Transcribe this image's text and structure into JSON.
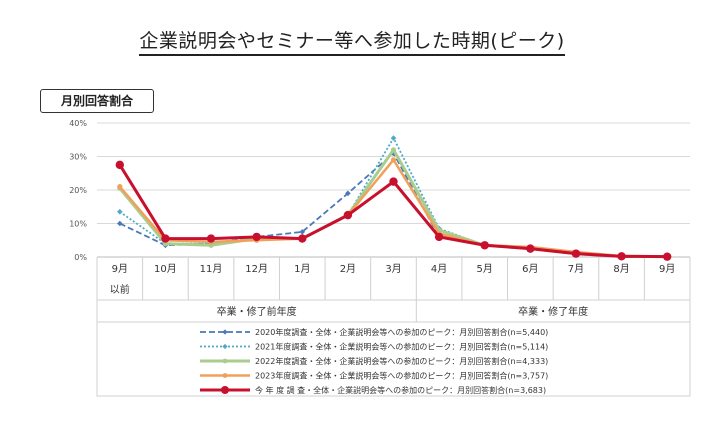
{
  "page": {
    "title": "企業説明会やセミナー等へ参加した時期(ピーク)",
    "badge": "月別回答割合"
  },
  "chart_data": {
    "type": "line",
    "categories": [
      "9月 以前",
      "10月",
      "11月",
      "12月",
      "1月",
      "2月",
      "3月",
      "4月",
      "5月",
      "6月",
      "7月",
      "8月",
      "9月"
    ],
    "category_lines": [
      [
        "9月",
        "以前"
      ],
      [
        "10月"
      ],
      [
        "11月"
      ],
      [
        "12月"
      ],
      [
        "1月"
      ],
      [
        "2月"
      ],
      [
        "3月"
      ],
      [
        "4月"
      ],
      [
        "5月"
      ],
      [
        "6月"
      ],
      [
        "7月"
      ],
      [
        "8月"
      ],
      [
        "9月"
      ]
    ],
    "groups": [
      {
        "label": "卒業・修了前年度",
        "from": 0,
        "to": 6
      },
      {
        "label": "卒業・修了年度",
        "from": 7,
        "to": 12
      }
    ],
    "y_ticks": [
      "0%",
      "10%",
      "20%",
      "30%",
      "40%"
    ],
    "ylim": [
      0,
      40
    ],
    "grid": true,
    "legend_position": "bottom",
    "series": [
      {
        "name": "2020年度調査・全体・企業説明会等への参加のピーク：月別回答割合(n=5,440)",
        "color": "#4a78b8",
        "dash": "6,3",
        "width": 1.8,
        "marker": "diamond",
        "values": [
          10,
          3.5,
          4,
          6,
          7.5,
          19,
          31,
          6,
          3.5,
          2.5,
          1,
          0.2,
          0.1
        ]
      },
      {
        "name": "2021年度調査・全体・企業説明会等への参加のピーク：月別回答割合(n=5,114)",
        "color": "#4fa9c9",
        "dash": "2,2",
        "width": 1.8,
        "marker": "diamond",
        "values": [
          13.5,
          4,
          4,
          5.5,
          5.5,
          12.5,
          35.5,
          8.5,
          3.5,
          2.5,
          1,
          0.2,
          0.1
        ]
      },
      {
        "name": "2022年度調査・全体・企業説明会等への参加のピーク：月別回答割合(n=4,333)",
        "color": "#a9cd8f",
        "dash": "",
        "width": 3,
        "marker": "circle",
        "values": [
          20.5,
          4,
          3.5,
          5.5,
          5.5,
          12.5,
          32,
          8,
          3.5,
          2.5,
          1,
          0.2,
          0.1
        ]
      },
      {
        "name": "2023年度調査・全体・企業説明会等への参加のピーク：月別回答割合(n=3,757)",
        "color": "#f0a05a",
        "dash": "",
        "width": 2.5,
        "marker": "circle",
        "values": [
          21,
          5,
          4.5,
          5,
          5.5,
          12.5,
          29,
          7,
          3.5,
          3,
          1.5,
          0.3,
          0.1
        ]
      },
      {
        "name": "今 年 度 調 査・全体・企業説明会等への参加のピーク：月別回答割合(n=3,683)",
        "color": "#c8102e",
        "dash": "",
        "width": 3,
        "marker": "circle",
        "values": [
          27.5,
          5.5,
          5.5,
          6,
          5.5,
          12.5,
          22.5,
          6,
          3.5,
          2.5,
          1,
          0.2,
          0.1
        ]
      }
    ]
  }
}
